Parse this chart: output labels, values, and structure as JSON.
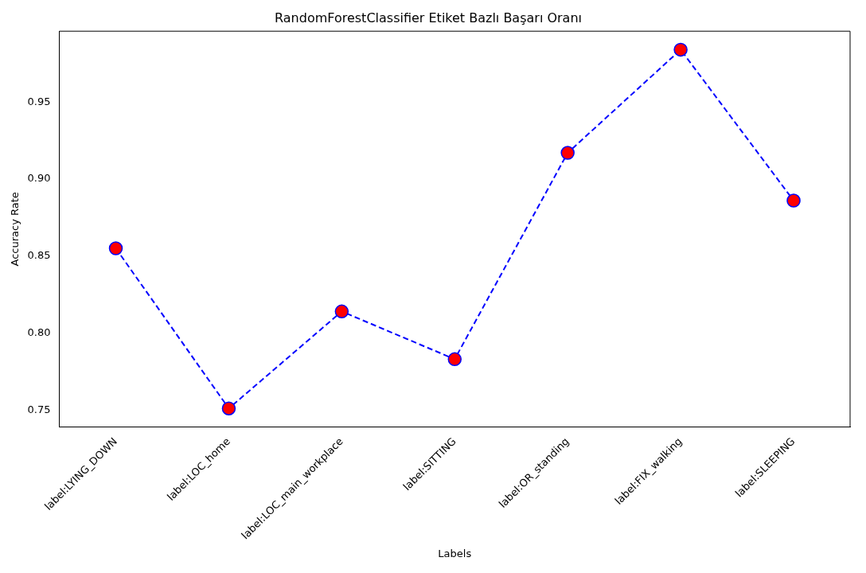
{
  "chart_data": {
    "type": "line",
    "title": "RandomForestClassifier Etiket Bazlı Başarı Oranı",
    "xlabel": "Labels",
    "ylabel": "Accuracy Rate",
    "categories": [
      "label:LYING_DOWN",
      "label:LOC_home",
      "label:LOC_main_workplace",
      "label:SITTING",
      "label:OR_standing",
      "label:FIX_walking",
      "label:SLEEPING"
    ],
    "series": [
      {
        "color": "#0000ff",
        "values": [
          0.855,
          0.751,
          0.814,
          0.783,
          0.917,
          0.984,
          0.886
        ]
      }
    ],
    "ylim": [
      0.739,
      0.996
    ],
    "yticks": [
      0.75,
      {
        "value": 0.8,
        "label": "0.80"
      },
      0.85,
      {
        "value": 0.9,
        "label": "0.90"
      },
      0.95
    ],
    "grid": false,
    "legend": false,
    "marker": "circle",
    "line_style": "dashed"
  }
}
